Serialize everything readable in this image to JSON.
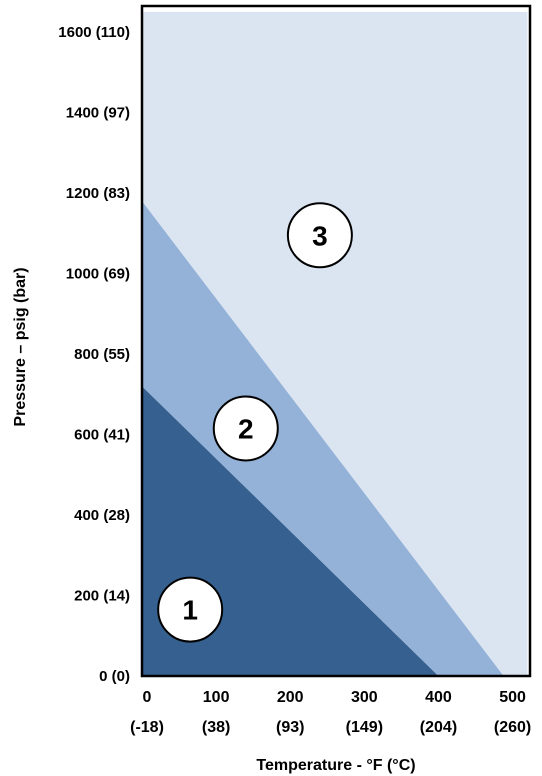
{
  "chart_data": {
    "type": "area",
    "title": "",
    "xlabel": "Temperature - °F (°C)",
    "ylabel": "Pressure – psig (bar)",
    "xlim": [
      0,
      520
    ],
    "ylim": [
      0,
      1650
    ],
    "x_ticks": [
      {
        "value": 0,
        "label": "0",
        "sublabel": "(-18)"
      },
      {
        "value": 100,
        "label": "100",
        "sublabel": "(38)"
      },
      {
        "value": 200,
        "label": "200",
        "sublabel": "(93)"
      },
      {
        "value": 300,
        "label": "300",
        "sublabel": "(149)"
      },
      {
        "value": 400,
        "label": "400",
        "sublabel": "(204)"
      },
      {
        "value": 500,
        "label": "500",
        "sublabel": "(260)"
      }
    ],
    "y_ticks": [
      {
        "value": 0,
        "label": "0 (0)"
      },
      {
        "value": 200,
        "label": "200 (14)"
      },
      {
        "value": 400,
        "label": "400 (28)"
      },
      {
        "value": 600,
        "label": "600 (41)"
      },
      {
        "value": 800,
        "label": "800 (55)"
      },
      {
        "value": 1000,
        "label": "1000 (69)"
      },
      {
        "value": 1200,
        "label": "1200 (83)"
      },
      {
        "value": 1400,
        "label": "1400 (97)"
      },
      {
        "value": 1600,
        "label": "1600 (110)"
      }
    ],
    "regions": [
      {
        "name": "1",
        "boundary": [
          [
            0,
            0
          ],
          [
            0,
            720
          ],
          [
            400,
            0
          ]
        ],
        "label_at": [
          65,
          165
        ],
        "color": "#35608f"
      },
      {
        "name": "2",
        "boundary": [
          [
            0,
            720
          ],
          [
            0,
            1180
          ],
          [
            488,
            0
          ],
          [
            400,
            0
          ]
        ],
        "label_at": [
          140,
          615
        ],
        "color": "#94b2d8"
      },
      {
        "name": "3",
        "boundary": [
          [
            0,
            1180
          ],
          [
            0,
            1650
          ],
          [
            520,
            1650
          ],
          [
            520,
            0
          ],
          [
            488,
            0
          ]
        ],
        "label_at": [
          240,
          1095
        ],
        "color": "#dbe5f2"
      }
    ],
    "grid": false,
    "legend": "none"
  }
}
